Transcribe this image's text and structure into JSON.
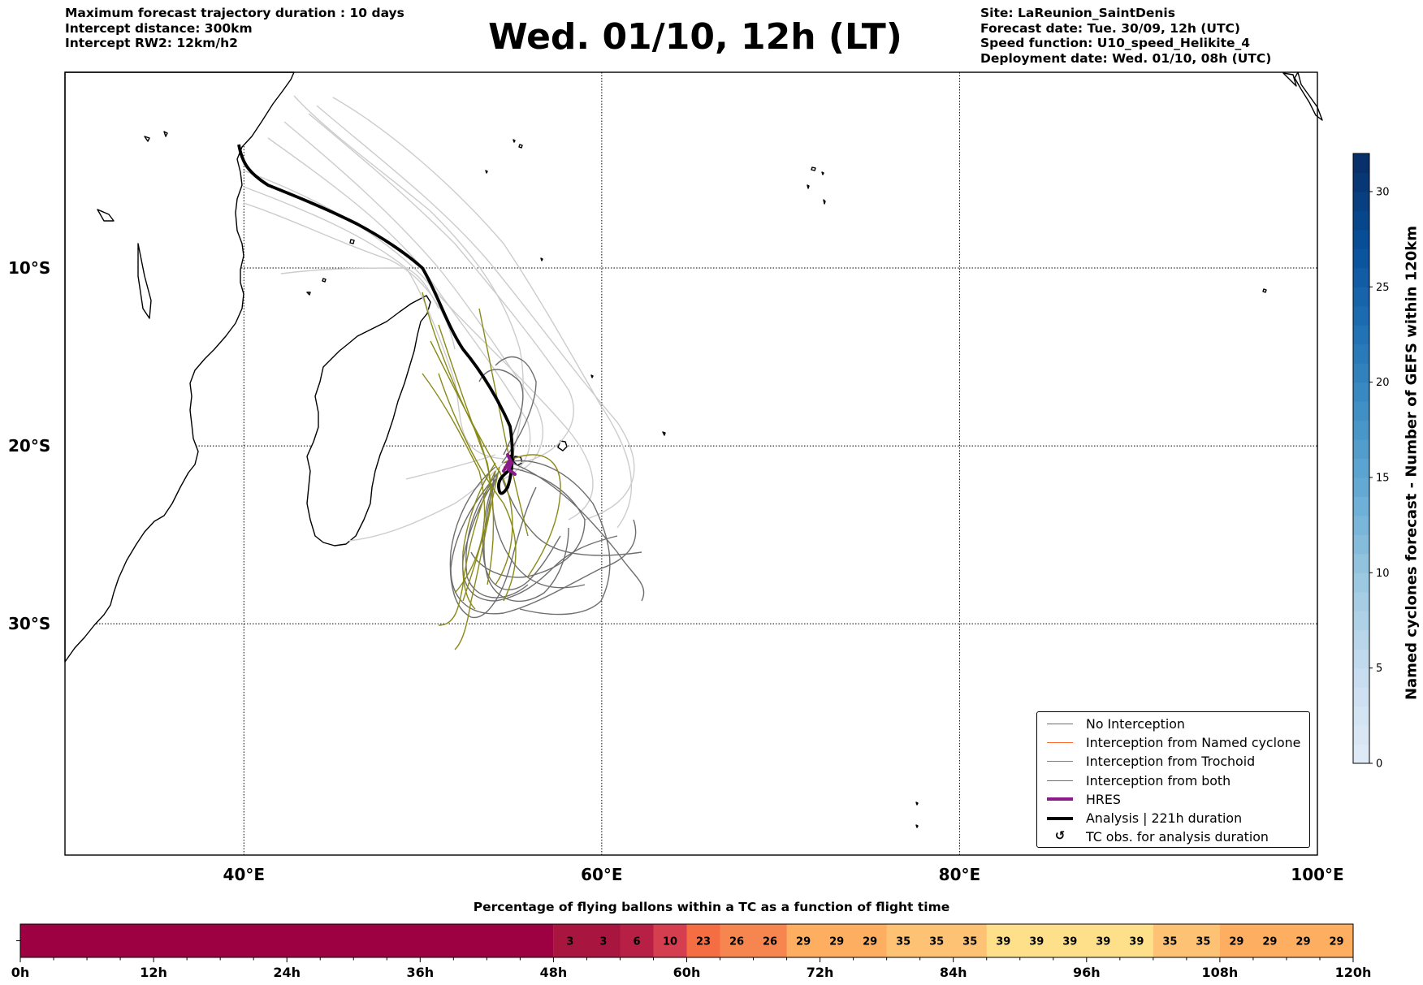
{
  "header": {
    "left": [
      "Maximum forecast trajectory duration : 10 days",
      "Intercept distance: 300km",
      "Intercept RW2: 12km/h2"
    ],
    "title": "Wed. 01/10, 12h (LT)",
    "right": [
      "Site: LaReunion_SaintDenis",
      "Forecast date: Tue. 30/09, 12h (UTC)",
      "Speed function: U10_speed_Helikite_4",
      "Deployment date: Wed. 01/10, 08h (UTC)"
    ]
  },
  "map": {
    "lon_range": [
      30,
      100
    ],
    "lat_range": [
      -43,
      1
    ],
    "lat_labels": [
      {
        "value": -10,
        "label": "10°S"
      },
      {
        "value": -20,
        "label": "20°S"
      },
      {
        "value": -30,
        "label": "30°S"
      }
    ],
    "lon_labels": [
      {
        "value": 40,
        "label": "40°E"
      },
      {
        "value": 60,
        "label": "60°E"
      },
      {
        "value": 80,
        "label": "80°E"
      },
      {
        "value": 100,
        "label": "100°E"
      }
    ],
    "gridlines": "dotted",
    "colors": {
      "no_interception": "#6e6e6e",
      "named_cyclone": "#ff6a2a",
      "trochoid": "#8a8a1a",
      "both": "#2e9e2e",
      "hres": "#8b1a8b",
      "analysis": "#000000",
      "faint_tracks": "#cccccc"
    },
    "site": {
      "name": "LaReunion_SaintDenis",
      "lon": 55.4,
      "lat": -20.9
    }
  },
  "legend": [
    {
      "label": "No Interception",
      "type": "line",
      "color": "#6e6e6e",
      "width": 1.3
    },
    {
      "label": "Interception from Named cyclone",
      "type": "line",
      "color": "#ff6a2a",
      "width": 1.3
    },
    {
      "label": "Interception from Trochoid",
      "type": "line",
      "color": "#8a8a1a",
      "width": 1.3
    },
    {
      "label": "Interception from both",
      "type": "line",
      "color": "#2e9e2e",
      "width": 1.3
    },
    {
      "label": "HRES",
      "type": "line",
      "color": "#8b1a8b",
      "width": 4
    },
    {
      "label": "Analysis | 221h duration",
      "type": "line",
      "color": "#000000",
      "width": 4
    },
    {
      "label": "TC obs. for analysis duration",
      "type": "symbol",
      "color": "#000000",
      "symbol": "cyclone-icon",
      "glyph": "↺"
    }
  ],
  "colorbar": {
    "label": "Named cyclones forecast - Number of GEFS within 120km",
    "min": 0,
    "max": 32,
    "ticks": [
      0,
      5,
      10,
      15,
      20,
      25,
      30
    ],
    "colormap": "Blues"
  },
  "strip": {
    "title": "Percentage of flying ballons within a TC as a function of flight time",
    "hours_per_cell": 3,
    "empty_cells": 16,
    "values": [
      3,
      3,
      6,
      10,
      23,
      26,
      26,
      29,
      29,
      29,
      35,
      35,
      35,
      39,
      39,
      39,
      39,
      39,
      35,
      35,
      29,
      29,
      29,
      29
    ],
    "tick_labels": [
      "0h",
      "12h",
      "24h",
      "36h",
      "48h",
      "60h",
      "72h",
      "84h",
      "96h",
      "108h",
      "120h"
    ]
  },
  "chart_data": {
    "type": "heatmap",
    "title": "Percentage of flying ballons within a TC as a function of flight time",
    "x_start_hours": [
      48,
      51,
      54,
      57,
      60,
      63,
      66,
      69,
      72,
      75,
      78,
      81,
      84,
      87,
      90,
      93,
      96,
      99,
      102,
      105,
      108,
      111,
      114,
      117
    ],
    "values": [
      3,
      3,
      6,
      10,
      23,
      26,
      26,
      29,
      29,
      29,
      35,
      35,
      35,
      39,
      39,
      39,
      39,
      39,
      35,
      35,
      29,
      29,
      29,
      29
    ],
    "xlim": [
      0,
      120
    ]
  }
}
